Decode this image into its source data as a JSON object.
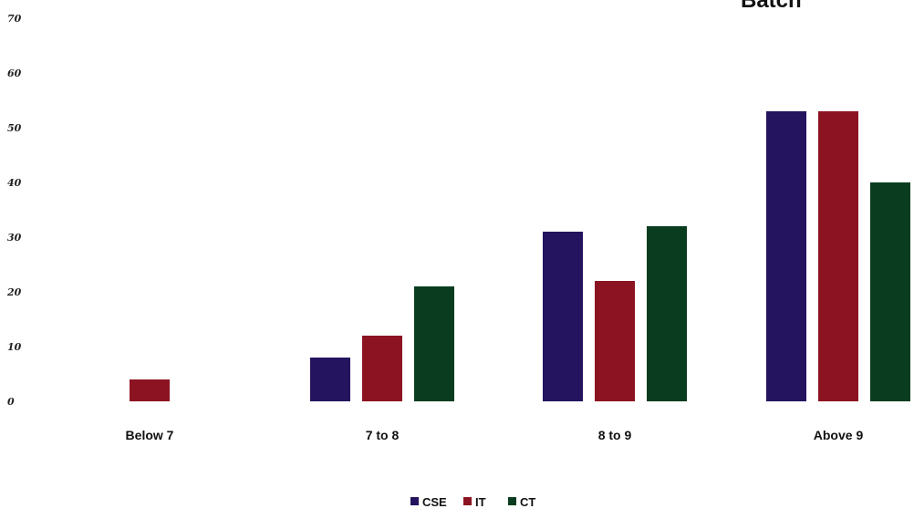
{
  "chart_data": {
    "type": "bar",
    "title": "Batch",
    "categories": [
      "Below 7",
      "7 to 8",
      "8 to 9",
      "Above 9"
    ],
    "series": [
      {
        "name": "CSE",
        "color": "#24135e",
        "values": [
          0,
          8,
          31,
          53
        ]
      },
      {
        "name": "IT",
        "color": "#8c1422",
        "values": [
          4,
          12,
          22,
          53
        ]
      },
      {
        "name": "CT",
        "color": "#0a3d1f",
        "values": [
          0,
          21,
          32,
          40
        ]
      }
    ],
    "yticks": [
      "0",
      "10",
      "20",
      "30",
      "40",
      "50",
      "60",
      "70"
    ],
    "ylim": [
      0,
      70
    ],
    "grid": false,
    "legend_position": "bottom"
  }
}
